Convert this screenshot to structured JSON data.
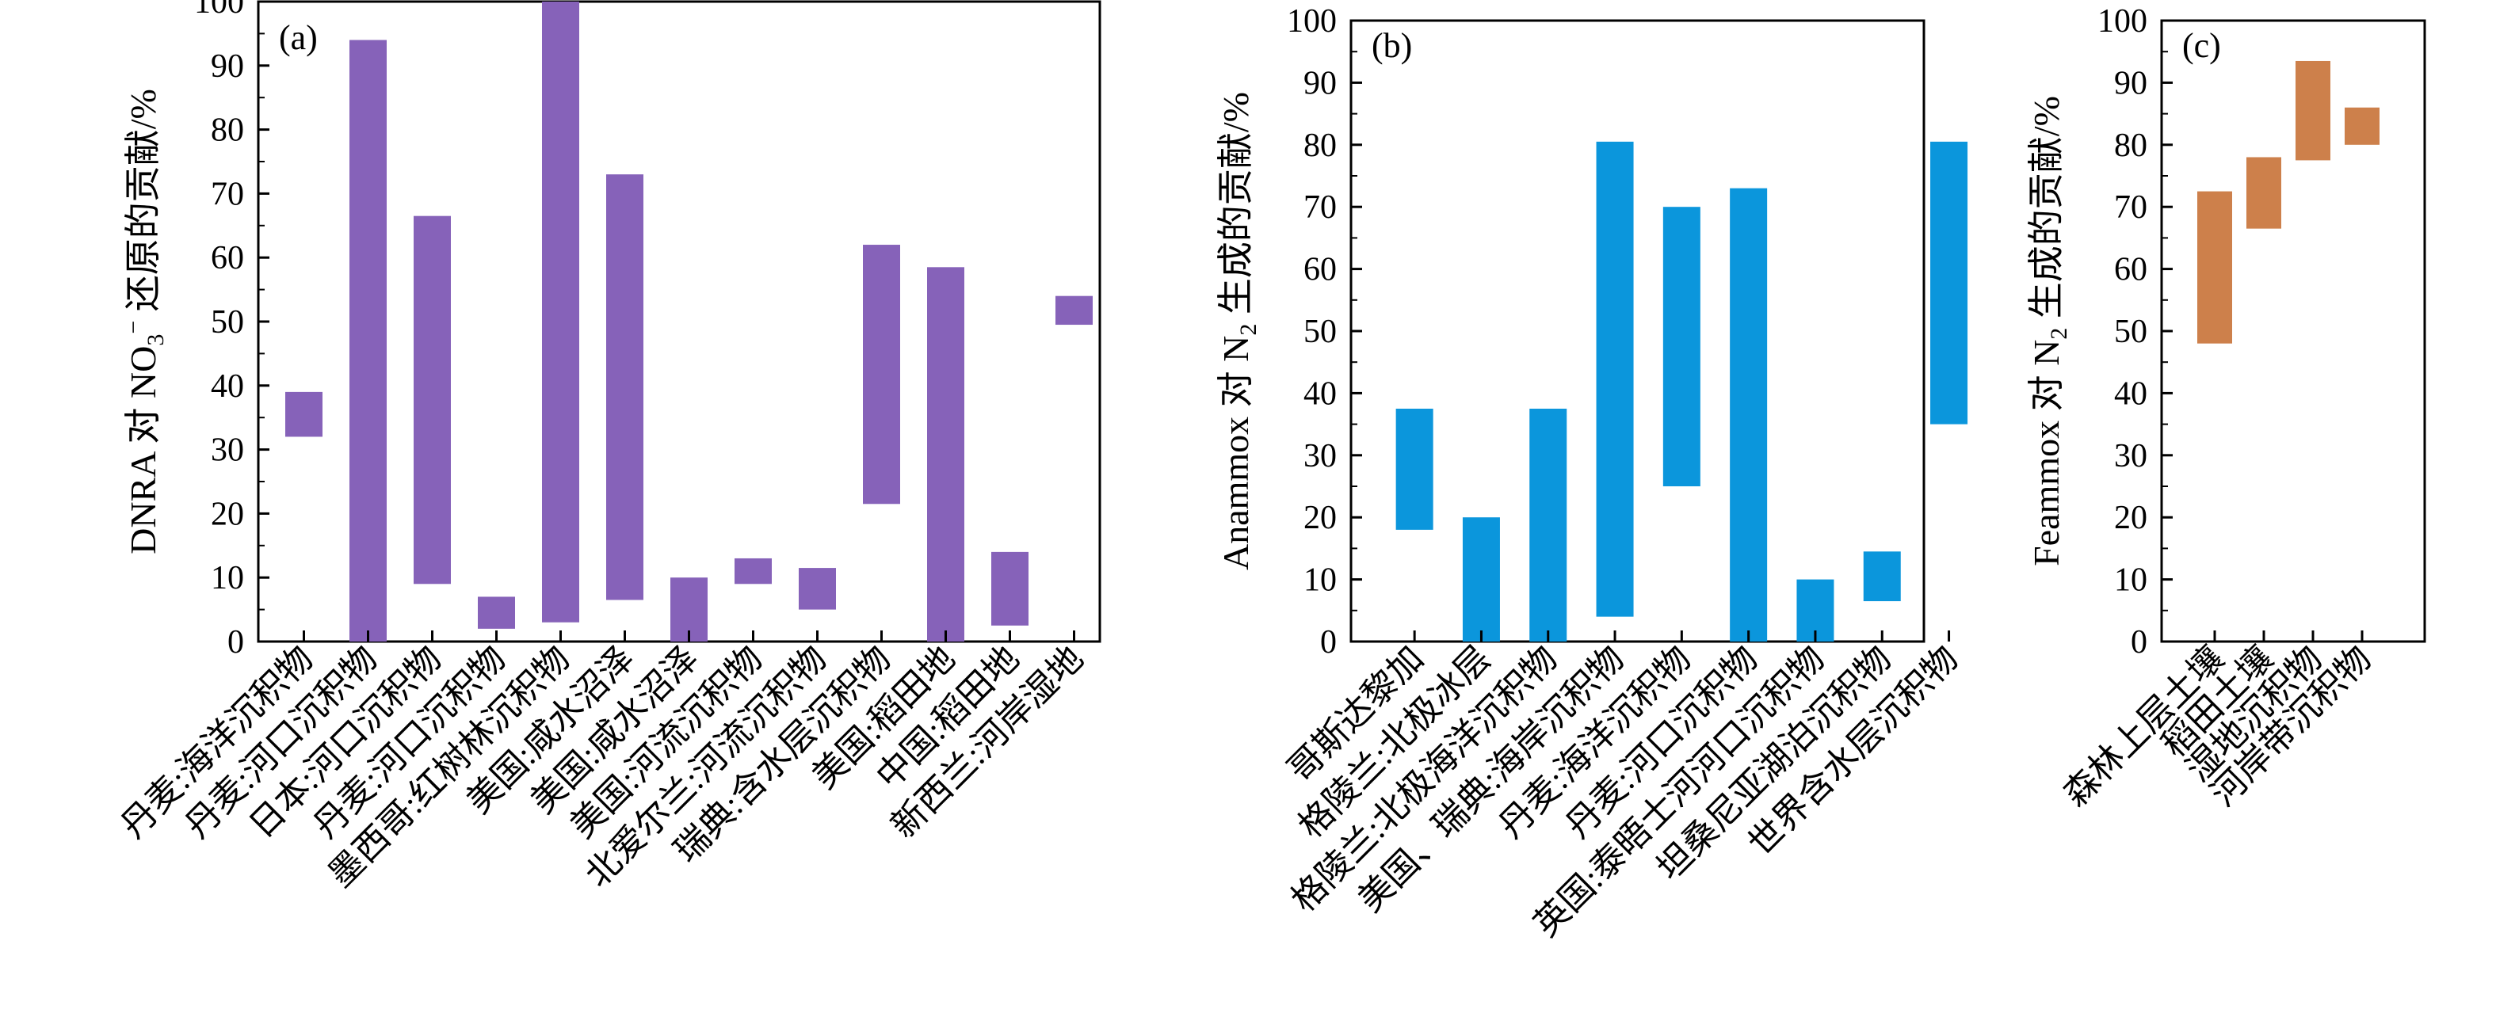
{
  "chart_data": [
    {
      "type": "bar",
      "panel_label": "(a)",
      "ylabel": "DNRA 对 NO₃⁻ 还原的贡献/%",
      "ylabel_parts": [
        {
          "t": "DNRA 对 NO",
          "s": "base"
        },
        {
          "t": "3",
          "s": "sub"
        },
        {
          "t": "−",
          "s": "sup"
        },
        {
          "t": " 还原的贡献/%",
          "s": "base"
        }
      ],
      "ylim": [
        0,
        100
      ],
      "yticks": [
        0,
        10,
        20,
        30,
        40,
        50,
        60,
        70,
        80,
        90,
        100
      ],
      "color": "#8662b9",
      "categories": [
        "丹麦:海洋沉积物",
        "丹麦:河口沉积物",
        "日本:河口沉积物",
        "丹麦:河口沉积物",
        "墨西哥:红树林沉积物",
        "美国:咸水沼泽",
        "美国:咸水沼泽",
        "美国:河流沉积物",
        "北爱尔兰:河流沉积物",
        "瑞典:含水层沉积物",
        "美国:稻田地",
        "中国:稻田地",
        "新西兰:河岸湿地"
      ],
      "series": [
        {
          "low": [
            32,
            0,
            9,
            2,
            3,
            6.5,
            0,
            9,
            5,
            21.5,
            0,
            2.5,
            49.5
          ],
          "high": [
            39,
            94,
            66.5,
            7,
            100,
            73,
            10,
            13,
            11.5,
            62,
            58.5,
            14,
            54
          ]
        }
      ]
    },
    {
      "type": "bar",
      "panel_label": "(b)",
      "ylabel": "Anammox 对 N₂ 生成的贡献/%",
      "ylabel_parts": [
        {
          "t": "Anammox 对 N",
          "s": "base"
        },
        {
          "t": "2",
          "s": "sub"
        },
        {
          "t": " 生成的贡献/%",
          "s": "base"
        }
      ],
      "ylim": [
        0,
        100
      ],
      "yticks": [
        0,
        10,
        20,
        30,
        40,
        50,
        60,
        70,
        80,
        90,
        100
      ],
      "color": "#0b96dc",
      "categories": [
        "哥斯达黎加",
        "格陵兰:北极冰层",
        "格陵兰:北极海洋沉积物",
        "美国、瑞典:海岸沉积物",
        "丹麦:海洋沉积物",
        "丹麦:河口沉积物",
        "英国:泰晤士河河口沉积物",
        "坦桑尼亚湖泊沉积物",
        "世界含水层沉积物"
      ],
      "series": [
        {
          "low": [
            18,
            0,
            0,
            4,
            25,
            0,
            0,
            6.5,
            35
          ],
          "high": [
            37.5,
            20,
            37.5,
            80.5,
            70,
            73,
            10,
            14.5,
            80.5
          ]
        }
      ]
    },
    {
      "type": "bar",
      "panel_label": "(c)",
      "ylabel": "Feammox 对 N₂ 生成的贡献/%",
      "ylabel_parts": [
        {
          "t": "Feammox 对 N",
          "s": "base"
        },
        {
          "t": "2",
          "s": "sub"
        },
        {
          "t": " 生成的贡献/%",
          "s": "base"
        }
      ],
      "ylim": [
        0,
        100
      ],
      "yticks": [
        0,
        10,
        20,
        30,
        40,
        50,
        60,
        70,
        80,
        90,
        100
      ],
      "color": "#cd804b",
      "categories": [
        "森林上层土壤",
        "稻田土壤",
        "湿地沉积物",
        "河岸带沉积物"
      ],
      "series": [
        {
          "low": [
            48,
            66.5,
            77.5,
            80
          ],
          "high": [
            72.5,
            78,
            93.5,
            86
          ]
        }
      ]
    }
  ]
}
